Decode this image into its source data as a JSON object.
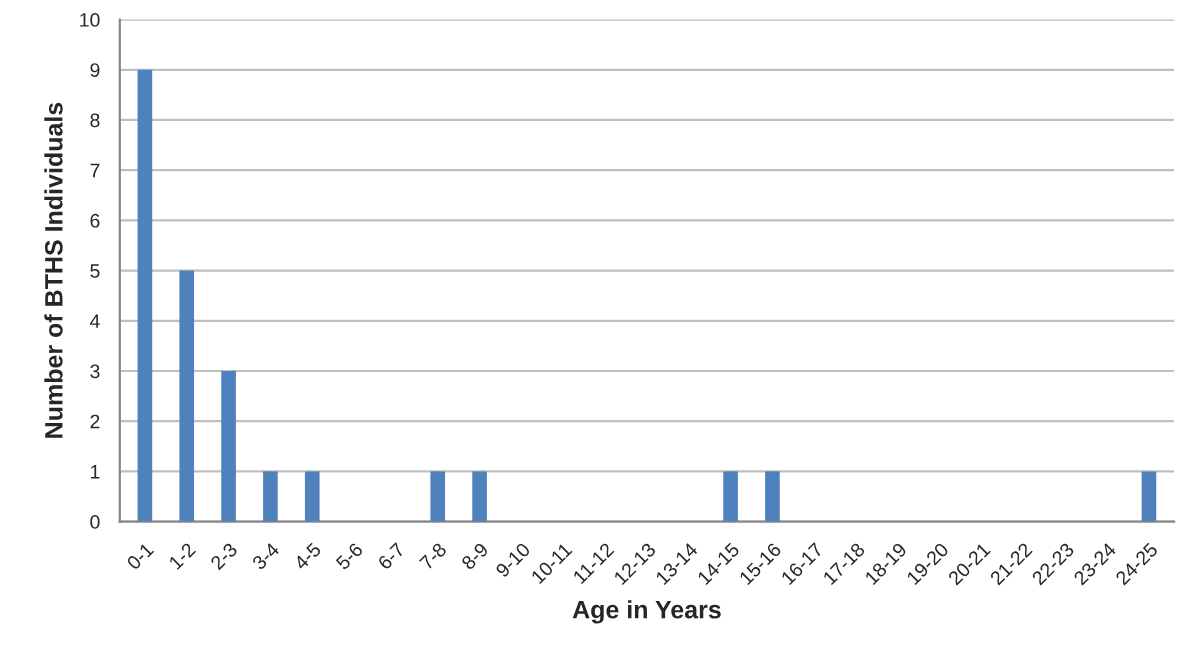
{
  "chart_data": {
    "type": "bar",
    "xlabel": "Age in Years",
    "ylabel": "Number of BTHS Individuals",
    "categories": [
      "0-1",
      "1-2",
      "2-3",
      "3-4",
      "4-5",
      "5-6",
      "6-7",
      "7-8",
      "8-9",
      "9-10",
      "10-11",
      "11-12",
      "12-13",
      "13-14",
      "14-15",
      "15-16",
      "16-17",
      "17-18",
      "18-19",
      "19-20",
      "20-21",
      "21-22",
      "22-23",
      "23-24",
      "24-25"
    ],
    "values": [
      9,
      5,
      3,
      1,
      1,
      0,
      0,
      1,
      1,
      0,
      0,
      0,
      0,
      0,
      1,
      1,
      0,
      0,
      0,
      0,
      0,
      0,
      0,
      0,
      1
    ],
    "color": "#4f81bd",
    "ylim": [
      0,
      10
    ],
    "yticks": [
      0,
      1,
      2,
      3,
      4,
      5,
      6,
      7,
      8,
      9,
      10
    ],
    "grid": "y",
    "legend": false
  }
}
